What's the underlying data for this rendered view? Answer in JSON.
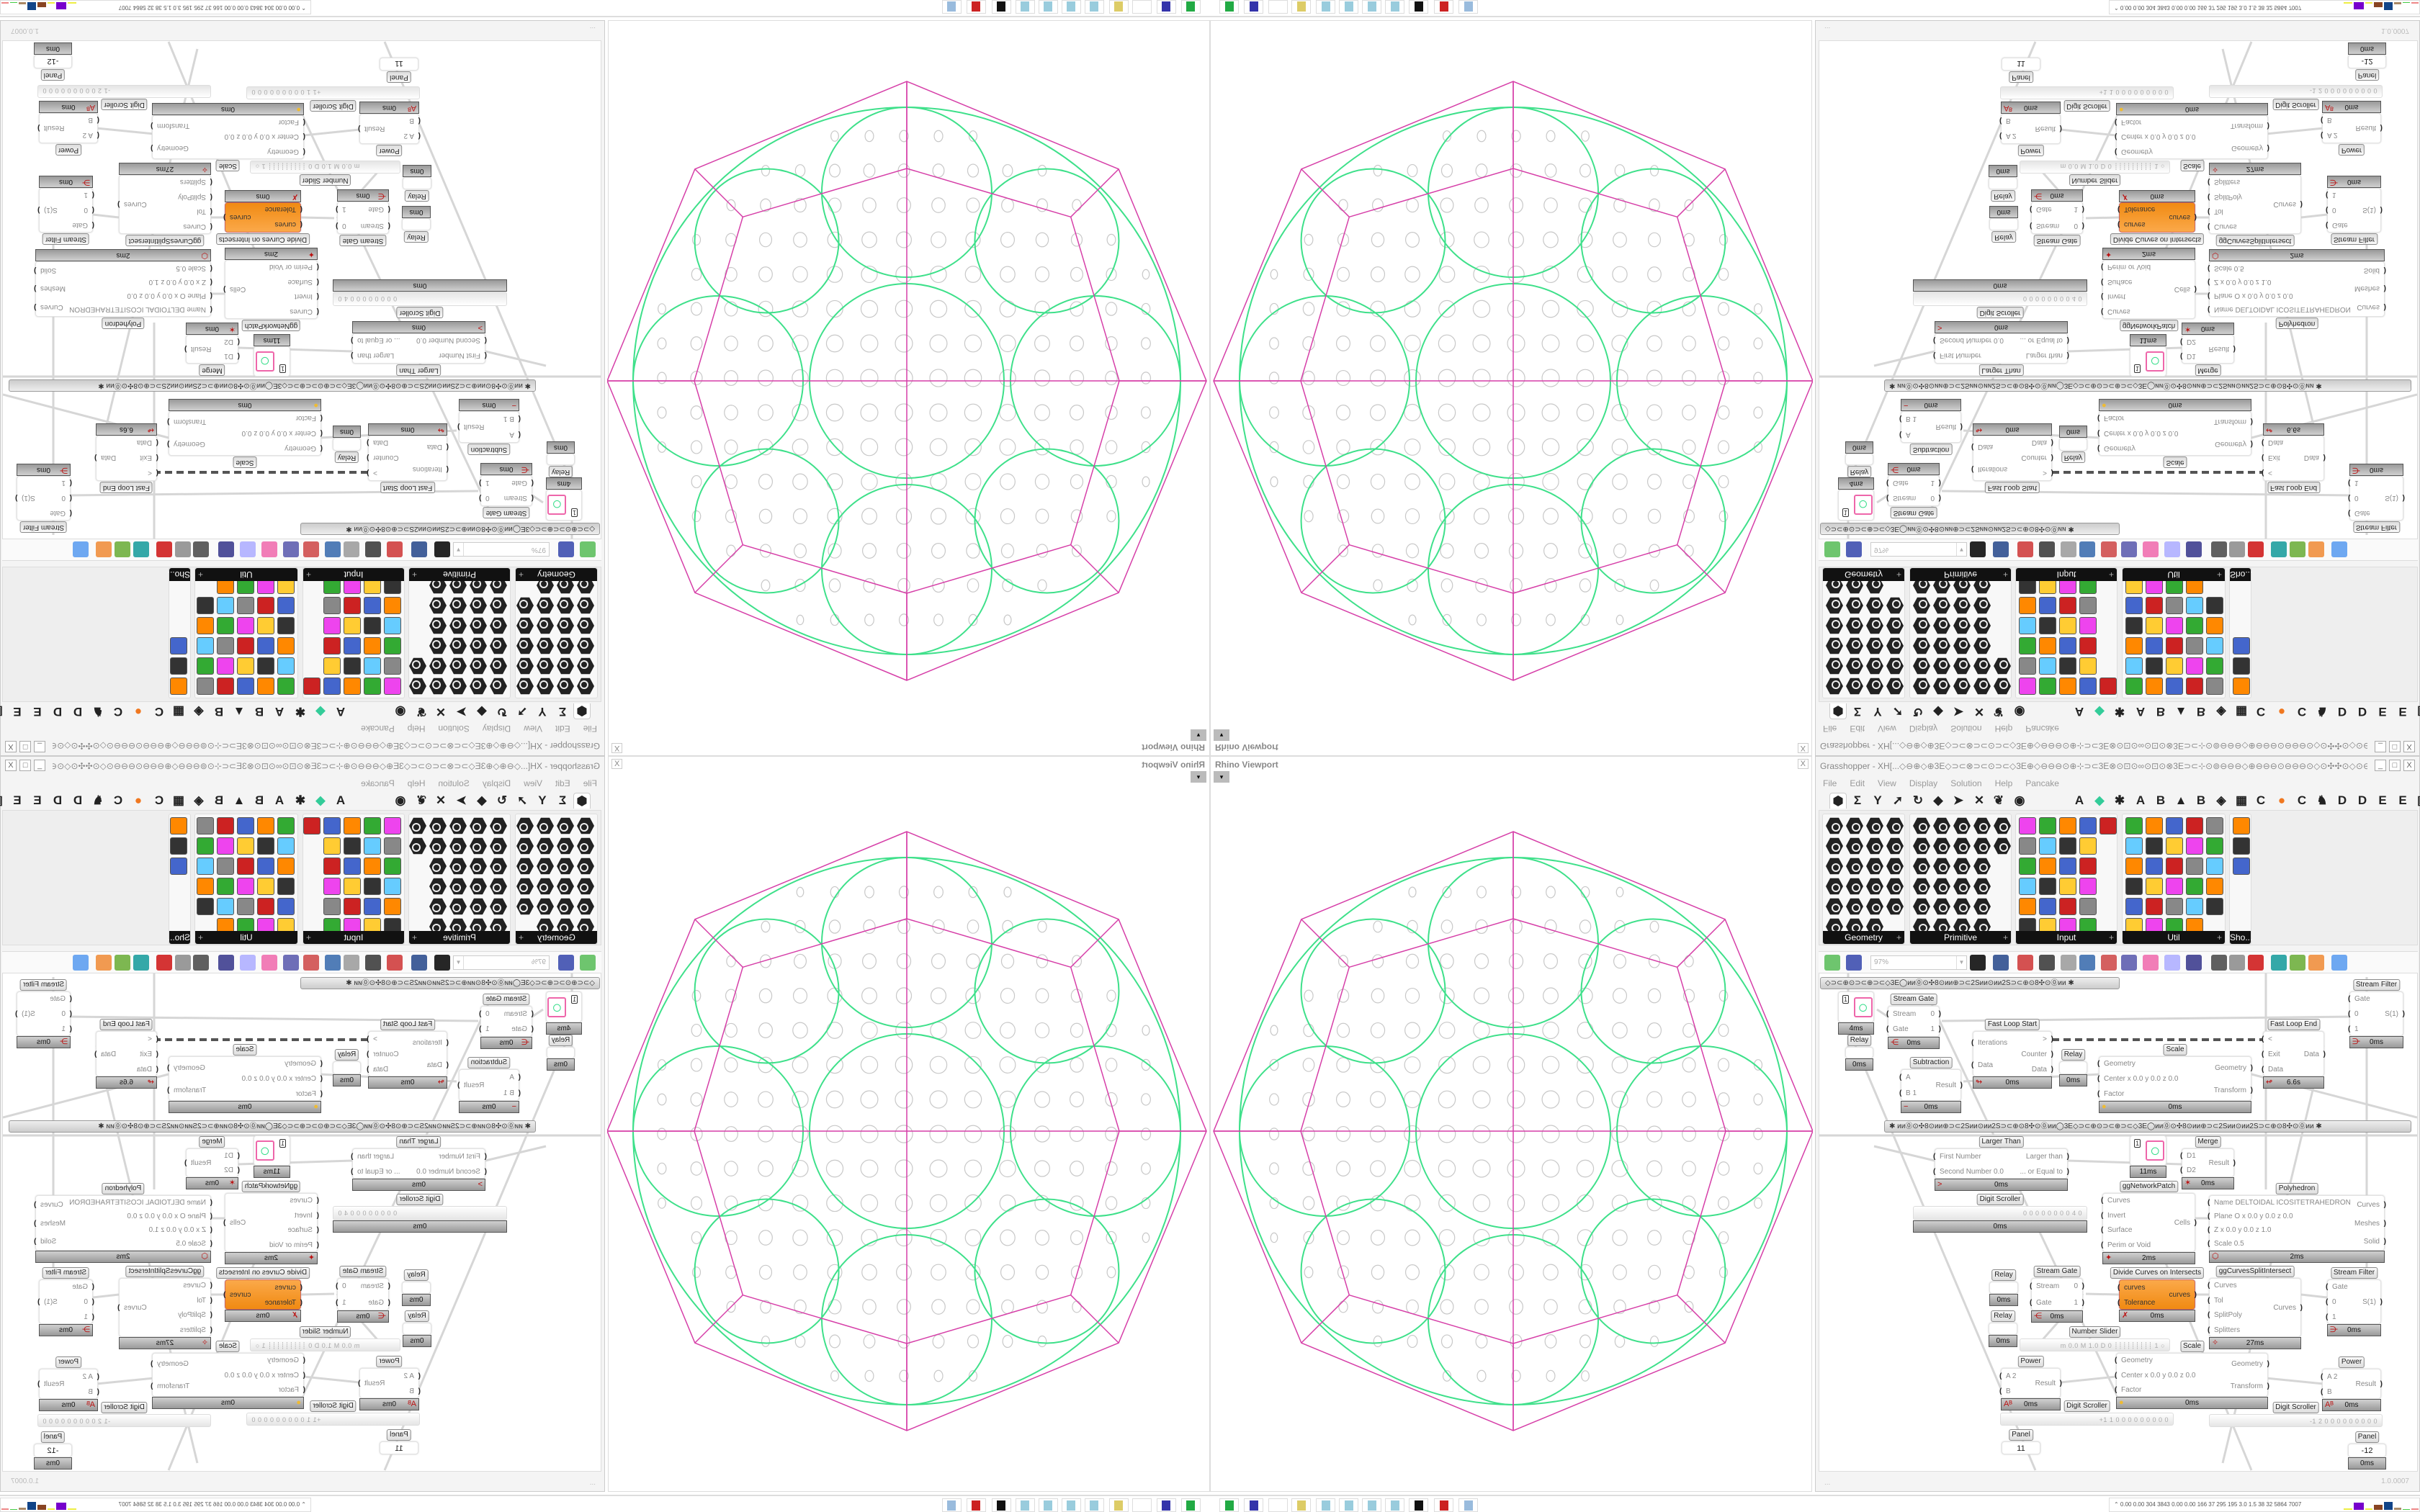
{
  "viewport": {
    "title": "Rhino Viewport",
    "close_label": "X",
    "dropdown_label": "▾"
  },
  "window": {
    "title": "Grasshopper - XH[...◇⊖⊕◇⊕3E◇⊃⊂⊗⊃⊂⊙⊃⊂◇3E⊕◇⊖⊖⊖⊙⊕⊹⊃⊂3E⊗⊙⊡⊙∞⊙⊡⊙⊗3E⊃⊂⊹⊙⊚⊖⊖⊖◇⊕⊖⊖⊖⊙⊖⊖⊖⊙◇⊙✣✣⊙◇⊙⊖⊖⊖⊙⊖⊖⊖⊕◇⊖⊖⊖⊙⊕⊹⊃⊂3E⊗⊙⊡⊙∞⊙⊡...",
    "buttons": [
      "_",
      "□",
      "X"
    ]
  },
  "menu": [
    "File",
    "Edit",
    "View",
    "Display",
    "Solution",
    "Help",
    "Pancake"
  ],
  "tabs": {
    "icons": [
      "hexagon-icon",
      "Σ",
      "Y",
      "➚",
      "↻",
      "◆",
      "➤",
      "✕",
      "❦",
      "◉"
    ],
    "letters": [
      "A",
      "◆",
      "✱",
      "A",
      "B",
      "▲",
      "B",
      "◈",
      "▦",
      "C",
      "●",
      "C",
      "♞",
      "D",
      "D",
      "E",
      "E",
      "▣"
    ]
  },
  "ribbon": {
    "panels": [
      {
        "label": "Geometry",
        "plus": "+"
      },
      {
        "label": "Primitive",
        "plus": "+"
      },
      {
        "label": "Input",
        "plus": "+"
      },
      {
        "label": "Util",
        "plus": "+"
      },
      {
        "label": "Sho..."
      }
    ]
  },
  "toolbar": {
    "zoom": "97%",
    "icons": [
      "new-file",
      "save",
      "zoom-extents",
      "eye",
      "sketch-pen",
      "bug",
      "at-sign",
      "gha",
      "preview-window",
      "search",
      "package",
      "bulb",
      "cross-wire",
      "shaded",
      "wire-frame",
      "red-shape",
      "teal-shape",
      "green-shape",
      "orange-sphere",
      "blue-sphere"
    ]
  },
  "canvas": {
    "groups": [
      "◇⊃⊂⊕⊙⊃⊂⊕⊃⊂◇3E◯ᴎᴎ⓪⊙✣8⊙ᴎᴎ⊕⊃⊂2Sᴎᴎ⊙ᴎᴎ2S⊃⊂⊕⊙8✣⊙⓪ᴎᴎ        ✱",
      "✱          ᴎᴎ⓪⊙✣8⊙ᴎᴎ⊕⊃⊂2Sᴎᴎ⊙ᴎᴎ2S⊃⊂⊕⊙8✣⊙⓪ᴎᴎ◯3E◇⊃⊂⊕⊙⊃⊂⊕⊃⊂◇3E◯ᴎᴎ⓪⊙✣8⊙ᴎᴎ⊕⊃⊂2Sᴎᴎ⊙ᴎᴎ2S⊃⊂⊕⊙8✣⊙⓪ᴎᴎ          ✱"
    ],
    "components": [
      {
        "id": "preview1",
        "box": "1",
        "footer": "4ms",
        "icon": "○"
      },
      {
        "id": "relay1",
        "label": "Relay",
        "footer": "0ms"
      },
      {
        "id": "streamgate1",
        "label": "Stream Gate",
        "inputs": [
          "Stream",
          "Gate"
        ],
        "outputs": [
          "0",
          "1"
        ],
        "footer": "0ms",
        "icon": "⋲"
      },
      {
        "id": "fastloopstart",
        "label": "Fast Loop Start",
        "inputs": [
          "Iterations",
          "Data"
        ],
        "outputs": [
          ">",
          "Counter",
          "Data"
        ],
        "footer": "0ms",
        "icon": "↬"
      },
      {
        "id": "relay2",
        "label": "Relay",
        "footer": "0ms"
      },
      {
        "id": "subtraction",
        "label": "Subtraction",
        "inputs": [
          "A",
          "B 1"
        ],
        "outputs": [
          "Result"
        ],
        "footer": "0ms",
        "icon": "−"
      },
      {
        "id": "scale1",
        "label": "Scale",
        "inputs": [
          "Geometry",
          "Center x 0.0 y 0.0 z 0.0",
          "Factor"
        ],
        "outputs": [
          "Geometry",
          "Transform"
        ],
        "footer": "0ms",
        "icon": "●"
      },
      {
        "id": "fastloopend",
        "label": "Fast Loop End",
        "inputs": [
          "<",
          "Exit",
          "Data"
        ],
        "outputs": [
          "Data"
        ],
        "footer": "6.6s",
        "icon": "↫"
      },
      {
        "id": "streamfilter1",
        "label": "Stream Filter",
        "inputs": [
          "Gate",
          "0",
          "1"
        ],
        "outputs": [
          "S(1)"
        ],
        "footer": "0ms",
        "icon": "⋺"
      },
      {
        "id": "largerthan",
        "label": "Larger Than",
        "inputs": [
          "First Number",
          "Second Number 0.0"
        ],
        "outputs": [
          "Larger than",
          "... or Equal to"
        ],
        "footer": "0ms",
        "icon": ">"
      },
      {
        "id": "preview2",
        "box": "1",
        "footer": "11ms",
        "icon": "○"
      },
      {
        "id": "merge",
        "label": "Merge",
        "inputs": [
          "D1",
          "D2"
        ],
        "outputs": [
          "Result"
        ],
        "footer": "0ms",
        "icon": "✶"
      },
      {
        "id": "digitscroller1",
        "label": "Digit Scroller",
        "value": "0 0 0 0 0 0 0 0 4 0",
        "footer": "0ms"
      },
      {
        "id": "cells",
        "label": "ggNetworkPatch",
        "inputs": [
          "Curves",
          "Invert",
          "Surface",
          "Perim or Void"
        ],
        "outputs": [
          "Cells"
        ],
        "footer": "2ms",
        "icon": "✦"
      },
      {
        "id": "polyhedron",
        "label": "Polyhedron",
        "inputs": [
          "Name DELTOIDAL ICOSITETRAHEDRON",
          "Plane  O x 0.0 y 0.0 z 0.0",
          "  Z x 0.0 y 0.0 z 1.0",
          "Scale 0.5"
        ],
        "outputs": [
          "Curves",
          "Meshes",
          "Solid"
        ],
        "footer": "2ms",
        "icon": "⬡"
      },
      {
        "id": "relay3",
        "label": "Relay",
        "footer": "0ms"
      },
      {
        "id": "relay4",
        "label": "Relay",
        "footer": "0ms"
      },
      {
        "id": "streamgate2",
        "label": "Stream Gate",
        "inputs": [
          "Stream",
          "Gate"
        ],
        "outputs": [
          "0",
          "1"
        ],
        "footer": "0ms",
        "icon": "⋲"
      },
      {
        "id": "dcoi",
        "label": "Divide Curves on Intersects",
        "inputs": [
          "curves",
          "Tolerance"
        ],
        "outputs": [
          "curves"
        ],
        "footer": "0ms",
        "icon": "✗"
      },
      {
        "id": "ggcsi",
        "label": "ggCurvesSplitIntersect",
        "inputs": [
          "Curves",
          "Tol",
          "SplitPoly",
          "Splitters"
        ],
        "outputs": [
          "Curves"
        ],
        "footer": "27ms",
        "icon": "✧"
      },
      {
        "id": "streamfilter2",
        "label": "Stream Filter",
        "inputs": [
          "Gate",
          "0",
          "1"
        ],
        "outputs": [
          "S(1)"
        ],
        "footer": "0ms",
        "icon": "⋺"
      },
      {
        "id": "numberslider",
        "label": "Number Slider",
        "value": "m 0.0  M 1.0  D 0  ┊┊┊┊┊┊┊┊┊ 1 ○"
      },
      {
        "id": "scale2",
        "label": "Scale",
        "inputs": [
          "Geometry",
          "Center x 0.0 y 0.0 z 0.0",
          "Factor"
        ],
        "outputs": [
          "Geometry",
          "Transform"
        ],
        "footer": "0ms",
        "icon": "●"
      },
      {
        "id": "power1",
        "label": "Power",
        "inputs": [
          "A 2",
          "B"
        ],
        "outputs": [
          "Result"
        ],
        "footer": "0ms",
        "icon": "Aᴮ"
      },
      {
        "id": "power2",
        "label": "Power",
        "inputs": [
          "A 2",
          "B"
        ],
        "outputs": [
          "Result"
        ],
        "footer": "0ms",
        "icon": "Aᴮ"
      },
      {
        "id": "digitscroller2",
        "label": "Digit Scroller",
        "value": "+1 1 0 0 0 0 0 0 0 0 0"
      },
      {
        "id": "digitscroller3",
        "label": "Digit Scroller",
        "value": "-1 2 0 0 0 0 0 0 0 0 0"
      },
      {
        "id": "panel1",
        "label": "Panel",
        "value": "11"
      },
      {
        "id": "panel2",
        "label": "Panel",
        "value": "-12",
        "footer": "0ms"
      }
    ]
  },
  "status": {
    "left": "...",
    "version": "1.0.0007"
  },
  "taskbar": {
    "icons": [
      "printer-icon",
      "floppy-64-icon",
      "blank-icon",
      "folder-icon",
      "notepad-icon",
      "notepad-icon",
      "notepad-icon",
      "notepad-icon",
      "fox-icon",
      "red-app-icon",
      "calculator-icon"
    ],
    "monitor": "⌃  0.00 0.00 304 3843 0.00 0.00 166 37 295 195 3.0 1.5 38 32 5864 7007"
  },
  "colors": {
    "wire_green": "#3ee08a",
    "magenta": "#d63fa8",
    "pattern_grey": "#c8c8c8",
    "component_orange": "#f5961f"
  }
}
